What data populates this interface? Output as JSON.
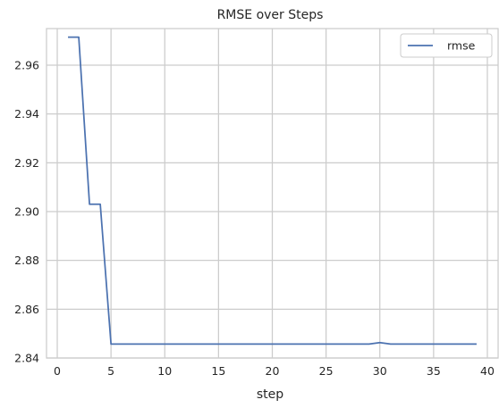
{
  "chart_data": {
    "type": "line",
    "title": "RMSE over Steps",
    "xlabel": "step",
    "ylabel": "",
    "xlim": [
      -1,
      41
    ],
    "ylim": [
      2.84,
      2.975
    ],
    "xticks": [
      0,
      5,
      10,
      15,
      20,
      25,
      30,
      35,
      40
    ],
    "yticks": [
      2.84,
      2.86,
      2.88,
      2.9,
      2.92,
      2.94,
      2.96
    ],
    "xtick_labels": [
      "0",
      "5",
      "10",
      "15",
      "20",
      "25",
      "30",
      "35",
      "40"
    ],
    "ytick_labels": [
      "2.84",
      "2.86",
      "2.88",
      "2.90",
      "2.92",
      "2.94",
      "2.96"
    ],
    "grid": true,
    "legend_position": "top-right",
    "series": [
      {
        "name": "rmse",
        "color": "#4c72b0",
        "x": [
          1,
          2,
          3,
          4,
          5,
          6,
          7,
          8,
          9,
          10,
          11,
          12,
          13,
          14,
          15,
          16,
          17,
          18,
          19,
          20,
          21,
          22,
          23,
          24,
          25,
          26,
          27,
          28,
          29,
          30,
          31,
          32,
          33,
          34,
          35,
          36,
          37,
          38,
          39
        ],
        "y": [
          2.9715,
          2.9715,
          2.903,
          2.903,
          2.8457,
          2.8457,
          2.8457,
          2.8457,
          2.8457,
          2.8457,
          2.8457,
          2.8457,
          2.8457,
          2.8457,
          2.8457,
          2.8457,
          2.8457,
          2.8457,
          2.8457,
          2.8457,
          2.8457,
          2.8457,
          2.8457,
          2.8457,
          2.8457,
          2.8457,
          2.8457,
          2.8457,
          2.8457,
          2.8463,
          2.8457,
          2.8457,
          2.8457,
          2.8457,
          2.8457,
          2.8457,
          2.8457,
          2.8457,
          2.8457
        ]
      }
    ]
  }
}
